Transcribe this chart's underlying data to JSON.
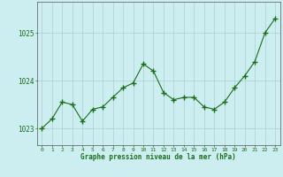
{
  "x": [
    0,
    1,
    2,
    3,
    4,
    5,
    6,
    7,
    8,
    9,
    10,
    11,
    12,
    13,
    14,
    15,
    16,
    17,
    18,
    19,
    20,
    21,
    22,
    23
  ],
  "y": [
    1023.0,
    1023.2,
    1023.55,
    1023.5,
    1023.15,
    1023.4,
    1023.45,
    1023.65,
    1023.85,
    1023.95,
    1024.35,
    1024.2,
    1023.75,
    1023.6,
    1023.65,
    1023.65,
    1023.45,
    1023.4,
    1023.55,
    1023.85,
    1024.1,
    1024.4,
    1025.0,
    1025.3
  ],
  "line_color": "#1a6e1a",
  "marker_color": "#1a6e1a",
  "bg_color": "#cceef0",
  "grid_color": "#aacdd0",
  "xlabel": "Graphe pression niveau de la mer (hPa)",
  "xlabel_color": "#1a6e1a",
  "tick_color": "#1a6e1a",
  "ylim": [
    1022.65,
    1025.65
  ],
  "yticks": [
    1023,
    1024,
    1025
  ],
  "xlim": [
    -0.5,
    23.5
  ],
  "xticks": [
    0,
    1,
    2,
    3,
    4,
    5,
    6,
    7,
    8,
    9,
    10,
    11,
    12,
    13,
    14,
    15,
    16,
    17,
    18,
    19,
    20,
    21,
    22,
    23
  ]
}
